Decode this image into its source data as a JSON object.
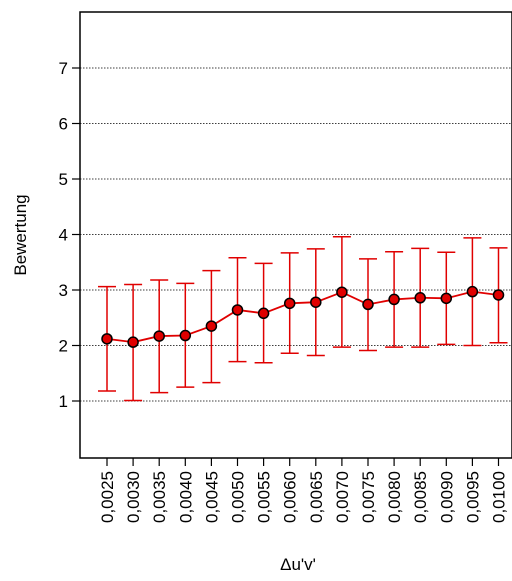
{
  "chart_data": {
    "type": "line",
    "title": "",
    "xlabel": "Δu'v'",
    "ylabel": "Bewertung",
    "ylim": [
      0,
      8
    ],
    "yticks": [
      1,
      2,
      3,
      4,
      5,
      6,
      7
    ],
    "grid": "horizontal dotted",
    "categories": [
      "0,0025",
      "0,0030",
      "0,0035",
      "0,0040",
      "0,0045",
      "0,0050",
      "0,0055",
      "0,0060",
      "0,0065",
      "0,0070",
      "0,0075",
      "0,0080",
      "0,0085",
      "0,0090",
      "0,0095",
      "0,0100"
    ],
    "series": [
      {
        "values": [
          2.12,
          2.06,
          2.17,
          2.18,
          2.35,
          2.64,
          2.58,
          2.76,
          2.78,
          2.96,
          2.74,
          2.83,
          2.86,
          2.85,
          2.97,
          2.91
        ],
        "err_low": [
          1.18,
          1.01,
          1.15,
          1.25,
          1.33,
          1.71,
          1.69,
          1.86,
          1.82,
          1.97,
          1.91,
          1.97,
          1.97,
          2.02,
          2.0,
          2.05
        ],
        "err_high": [
          3.06,
          3.1,
          3.18,
          3.12,
          3.35,
          3.58,
          3.48,
          3.67,
          3.74,
          3.96,
          3.56,
          3.69,
          3.75,
          3.68,
          3.94,
          3.76
        ]
      }
    ],
    "colors": {
      "line": "#e00000",
      "marker_fill": "#e00000",
      "marker_edge": "#000000",
      "error_bar": "#e00000"
    }
  }
}
